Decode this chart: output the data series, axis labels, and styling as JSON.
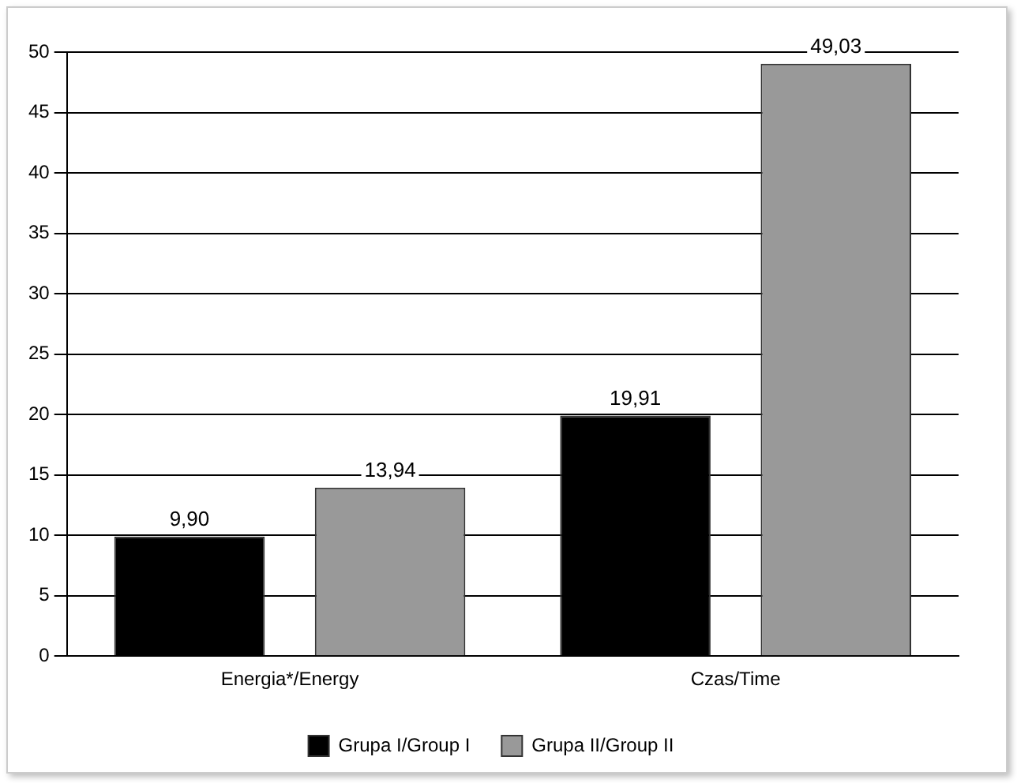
{
  "chart_data": {
    "type": "bar",
    "categories": [
      "Energia*/Energy",
      "Czas/Time"
    ],
    "series": [
      {
        "name": "Grupa I/Group I",
        "color": "#000000",
        "values": [
          9.9,
          19.91
        ],
        "value_labels": [
          "9,90",
          "19,91"
        ]
      },
      {
        "name": "Grupa II/Group II",
        "color": "#999999",
        "values": [
          13.94,
          49.03
        ],
        "value_labels": [
          "13,94",
          "49,03"
        ]
      }
    ],
    "ylim": [
      0,
      50
    ],
    "yticks": [
      0,
      5,
      10,
      15,
      20,
      25,
      30,
      35,
      40,
      45,
      50
    ],
    "grid": "y",
    "legend": "bottom"
  }
}
